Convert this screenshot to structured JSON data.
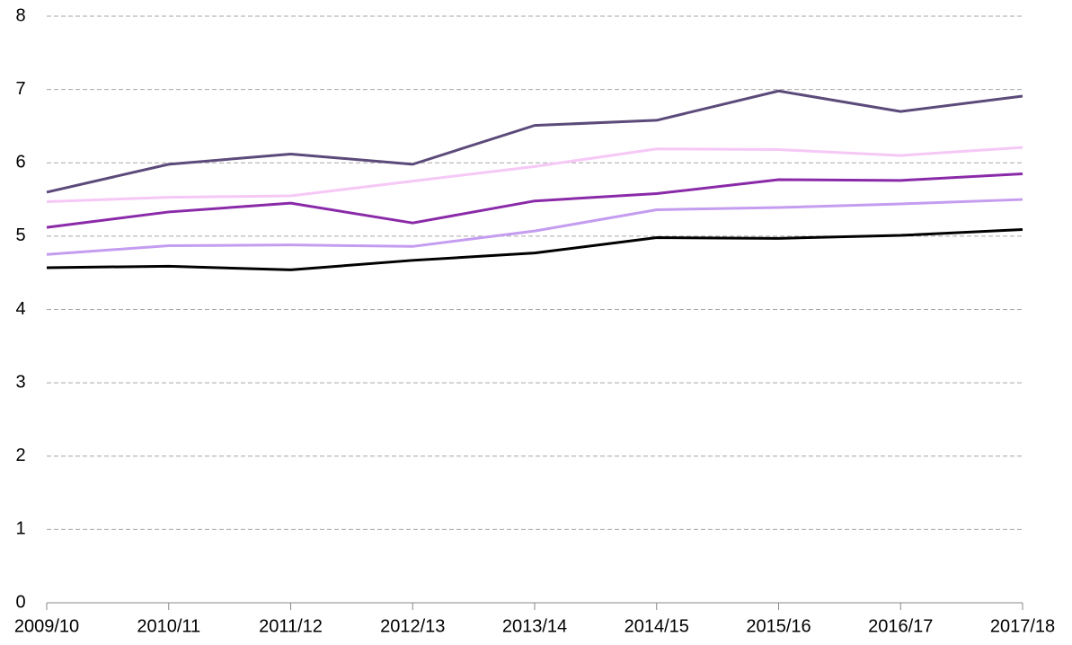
{
  "chart_data": {
    "type": "line",
    "categories": [
      "2009/10",
      "2010/11",
      "2011/12",
      "2012/13",
      "2013/14",
      "2014/15",
      "2015/16",
      "2016/17",
      "2017/18"
    ],
    "series": [
      {
        "color": "#5b4a7a",
        "values": [
          5.6,
          5.98,
          6.12,
          5.98,
          6.51,
          6.58,
          6.98,
          6.7,
          6.91
        ]
      },
      {
        "color": "#f6c8f6",
        "values": [
          5.47,
          5.53,
          5.55,
          5.75,
          5.95,
          6.19,
          6.18,
          6.1,
          6.21
        ]
      },
      {
        "color": "#8a2aa8",
        "values": [
          5.12,
          5.33,
          5.45,
          5.18,
          5.48,
          5.58,
          5.77,
          5.76,
          5.85
        ]
      },
      {
        "color": "#c49cf0",
        "values": [
          4.75,
          4.87,
          4.88,
          4.86,
          5.07,
          5.36,
          5.39,
          5.44,
          5.5
        ]
      },
      {
        "color": "#000000",
        "values": [
          4.57,
          4.59,
          4.54,
          4.67,
          4.77,
          4.98,
          4.97,
          5.01,
          5.09
        ]
      }
    ],
    "ylim": [
      0,
      8
    ],
    "yticks": [
      0,
      1,
      2,
      3,
      4,
      5,
      6,
      7,
      8
    ],
    "grid": true
  }
}
